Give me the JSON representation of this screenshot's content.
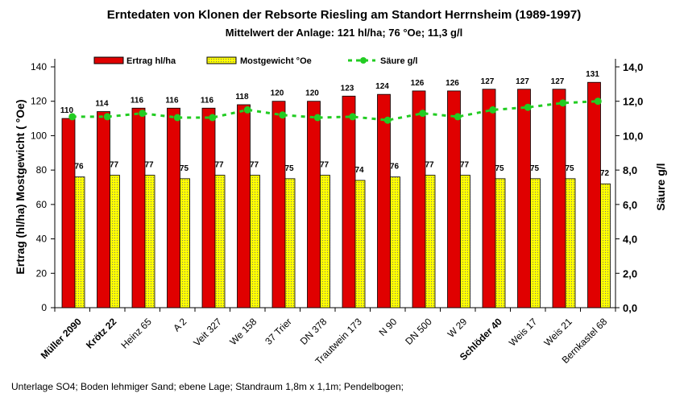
{
  "chart_data": {
    "type": "bar",
    "title": "Erntedaten von Klonen der Rebsorte Riesling am Standort Herrnsheim (1989-1997)",
    "subtitle": "Mittelwert der Anlage: 121 hl/ha; 76 °Oe; 11,3 g/l",
    "ylabel": "Ertrag (hl/ha)   Mostgewicht ( °Oe)",
    "y2label": "Säure g/l",
    "ylim": [
      0,
      140
    ],
    "y2lim": [
      0,
      14
    ],
    "yticks": [
      "0",
      "20",
      "40",
      "60",
      "80",
      "100",
      "120",
      "140"
    ],
    "y2ticks": [
      "0,0",
      "2,0",
      "4,0",
      "6,0",
      "8,0",
      "10,0",
      "12,0",
      "14,0"
    ],
    "categories": [
      "Müller 2090",
      "Krötz 22",
      "Heinz 65",
      "A 2",
      "Veit 327",
      "We 158",
      "37 Trier",
      "DN 378",
      "Trautwein 173",
      "N 90",
      "DN 500",
      "W 29",
      "Schlöder 40",
      "Weis 17",
      "Weis 21",
      "Bernkastel 68"
    ],
    "bold_categories": [
      "Müller 2090",
      "Krötz 22",
      "Schlöder 40"
    ],
    "series": [
      {
        "name": "Ertrag hl/ha",
        "type": "bar",
        "color": "#e00000",
        "values": [
          110,
          114,
          116,
          116,
          116,
          118,
          120,
          120,
          123,
          124,
          126,
          126,
          127,
          127,
          127,
          131
        ]
      },
      {
        "name": "Mostgewicht °Oe",
        "type": "bar",
        "color": "#ffff00",
        "values": [
          76,
          77,
          77,
          75,
          77,
          77,
          75,
          77,
          74,
          76,
          77,
          77,
          75,
          75,
          75,
          72
        ]
      },
      {
        "name": "Säure g/l",
        "type": "line",
        "axis": "right",
        "color": "#22cc22",
        "values": [
          11.1,
          11.1,
          11.3,
          11.05,
          11.05,
          11.5,
          11.2,
          11.05,
          11.1,
          10.9,
          11.3,
          11.1,
          11.5,
          11.65,
          11.9,
          12.0
        ]
      }
    ],
    "legend": "top",
    "footnote": "Unterlage SO4; Boden lehmiger Sand; ebene Lage; Standraum 1,8m x 1,1m; Pendelbogen;"
  }
}
